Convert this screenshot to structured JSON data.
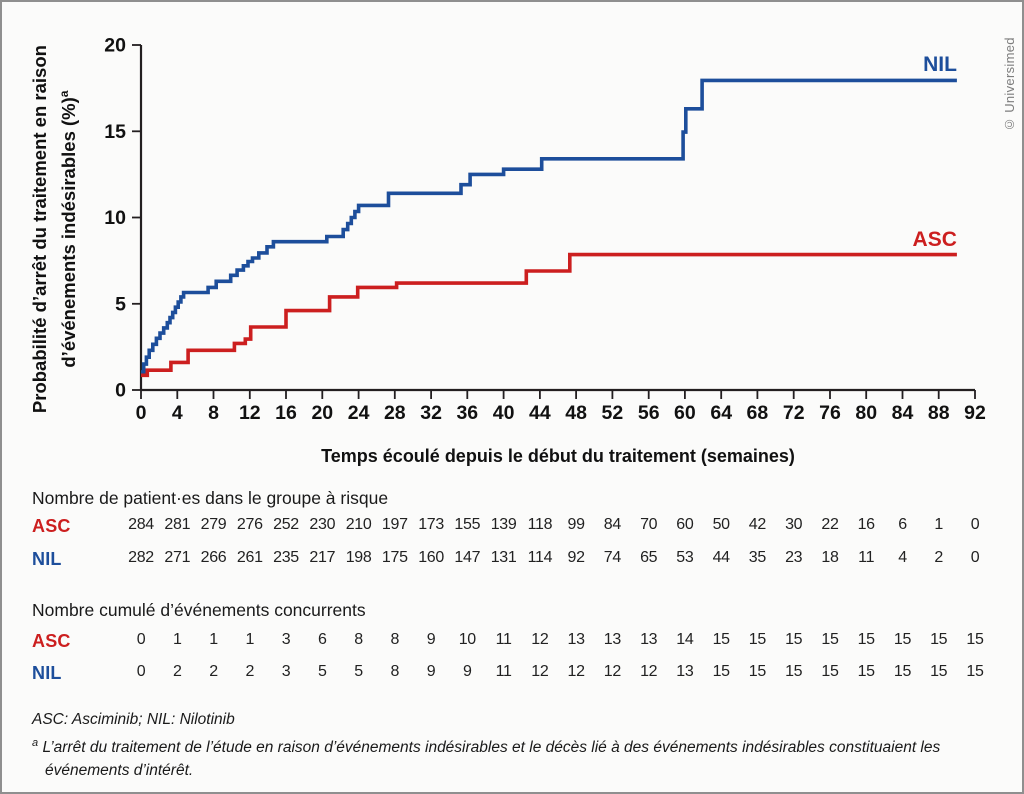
{
  "figure": {
    "credit": "© Universimed",
    "y_axis_label": {
      "line1": "Probabilité d’arrêt du traitement en raison",
      "line2": "d’événements indésirables (%)",
      "sup": "a"
    }
  },
  "chart_data": {
    "type": "line",
    "subtype": "step-after cumulative incidence (Kaplan-Meier style)",
    "title": "",
    "xlabel": "Temps écoulé depuis le début du traitement (semaines)",
    "ylabel": "Probabilité d’arrêt du traitement en raison d’événements indésirables (%)a",
    "xlim": [
      0,
      92
    ],
    "ylim": [
      0,
      20
    ],
    "grid": false,
    "legend_position": "labels at end of lines",
    "x_ticks": [
      0,
      4,
      8,
      12,
      16,
      20,
      24,
      28,
      32,
      36,
      40,
      44,
      48,
      52,
      56,
      60,
      64,
      68,
      72,
      76,
      80,
      84,
      88,
      92
    ],
    "y_ticks": [
      0,
      5,
      10,
      15,
      20
    ],
    "series": [
      {
        "name": "NIL",
        "color": "#1d4e9b",
        "points": [
          [
            0,
            1.05
          ],
          [
            0.3,
            1.5
          ],
          [
            0.6,
            1.9
          ],
          [
            0.9,
            2.3
          ],
          [
            1.3,
            2.65
          ],
          [
            1.7,
            3.0
          ],
          [
            2.1,
            3.3
          ],
          [
            2.5,
            3.6
          ],
          [
            2.9,
            3.9
          ],
          [
            3.2,
            4.2
          ],
          [
            3.5,
            4.5
          ],
          [
            3.8,
            4.8
          ],
          [
            4.1,
            5.1
          ],
          [
            4.4,
            5.4
          ],
          [
            4.7,
            5.65
          ],
          [
            7.4,
            5.95
          ],
          [
            8.3,
            6.3
          ],
          [
            9.9,
            6.65
          ],
          [
            10.6,
            6.95
          ],
          [
            11.3,
            7.2
          ],
          [
            11.8,
            7.45
          ],
          [
            12.3,
            7.65
          ],
          [
            13.0,
            7.95
          ],
          [
            13.9,
            8.3
          ],
          [
            14.6,
            8.6
          ],
          [
            20.5,
            8.9
          ],
          [
            22.3,
            9.3
          ],
          [
            22.8,
            9.65
          ],
          [
            23.2,
            10.0
          ],
          [
            23.6,
            10.35
          ],
          [
            24.0,
            10.7
          ],
          [
            27.3,
            11.4
          ],
          [
            35.3,
            11.9
          ],
          [
            36.3,
            12.5
          ],
          [
            40.0,
            12.8
          ],
          [
            44.2,
            13.4
          ],
          [
            59.8,
            14.95
          ],
          [
            60.1,
            16.3
          ],
          [
            61.9,
            17.95
          ],
          [
            90,
            17.95
          ]
        ]
      },
      {
        "name": "ASC",
        "color": "#cc1f1f",
        "points": [
          [
            0,
            0.85
          ],
          [
            0.7,
            1.15
          ],
          [
            3.3,
            1.6
          ],
          [
            5.2,
            2.3
          ],
          [
            10.3,
            2.7
          ],
          [
            11.5,
            2.95
          ],
          [
            12.1,
            3.65
          ],
          [
            16.0,
            4.6
          ],
          [
            20.8,
            5.4
          ],
          [
            23.9,
            5.95
          ],
          [
            28.2,
            6.2
          ],
          [
            42.5,
            6.9
          ],
          [
            47.3,
            7.85
          ],
          [
            90,
            7.85
          ]
        ]
      }
    ]
  },
  "risk_table": {
    "title": "Nombre de patient·es dans le groupe à risque",
    "rows": [
      {
        "label": "ASC",
        "color": "#cc1f1f",
        "values": [
          284,
          281,
          279,
          276,
          252,
          230,
          210,
          197,
          173,
          155,
          139,
          118,
          99,
          84,
          70,
          60,
          50,
          42,
          30,
          22,
          16,
          6,
          1,
          0
        ]
      },
      {
        "label": "NIL",
        "color": "#1d4e9b",
        "values": [
          282,
          271,
          266,
          261,
          235,
          217,
          198,
          175,
          160,
          147,
          131,
          114,
          92,
          74,
          65,
          53,
          44,
          35,
          23,
          18,
          11,
          4,
          2,
          0
        ]
      }
    ]
  },
  "events_table": {
    "title": "Nombre cumulé d’événements concurrents",
    "rows": [
      {
        "label": "ASC",
        "color": "#cc1f1f",
        "values": [
          0,
          1,
          1,
          1,
          3,
          6,
          8,
          8,
          9,
          10,
          11,
          12,
          13,
          13,
          13,
          14,
          15,
          15,
          15,
          15,
          15,
          15,
          15,
          15
        ]
      },
      {
        "label": "NIL",
        "color": "#1d4e9b",
        "values": [
          0,
          2,
          2,
          2,
          3,
          5,
          5,
          8,
          9,
          9,
          11,
          12,
          12,
          12,
          12,
          13,
          15,
          15,
          15,
          15,
          15,
          15,
          15,
          15
        ]
      }
    ]
  },
  "footnotes": {
    "abbrev": "ASC: Asciminib; NIL: Nilotinib",
    "note_sup": "a",
    "note": "L’arrêt du traitement de l’étude en raison d’événements indésirables et le décès lié à des événements indésirables constituaient les événements d’intérêt."
  }
}
